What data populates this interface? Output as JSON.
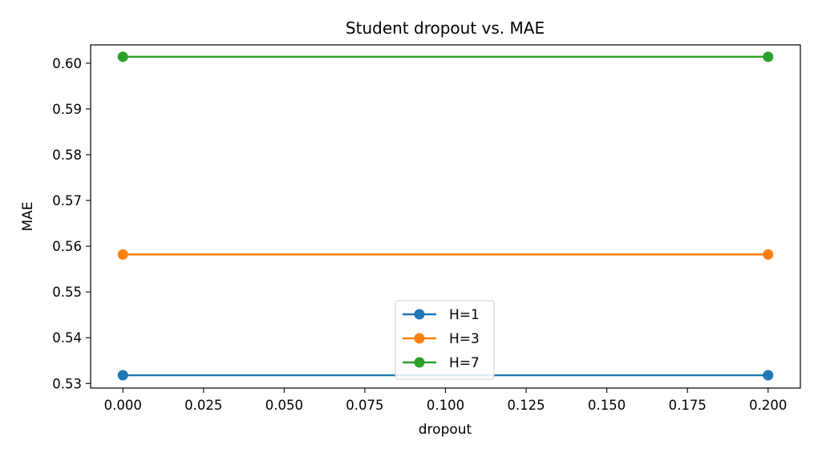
{
  "chart_data": {
    "type": "line",
    "title": "Student dropout vs. MAE",
    "xlabel": "dropout",
    "ylabel": "MAE",
    "x": [
      0.0,
      0.2
    ],
    "xlim": [
      -0.01,
      0.21
    ],
    "ylim": [
      0.529,
      0.604
    ],
    "xticks": [
      "0.000",
      "0.025",
      "0.050",
      "0.075",
      "0.100",
      "0.125",
      "0.150",
      "0.175",
      "0.200"
    ],
    "xtick_values": [
      0.0,
      0.025,
      0.05,
      0.075,
      0.1,
      0.125,
      0.15,
      0.175,
      0.2
    ],
    "yticks": [
      "0.53",
      "0.54",
      "0.55",
      "0.56",
      "0.57",
      "0.58",
      "0.59",
      "0.60"
    ],
    "ytick_values": [
      0.53,
      0.54,
      0.55,
      0.56,
      0.57,
      0.58,
      0.59,
      0.6
    ],
    "grid": false,
    "legend_position": "bottom-center",
    "series": [
      {
        "name": "H=1",
        "color": "#1f77b4",
        "values": [
          0.5318,
          0.5318
        ]
      },
      {
        "name": "H=3",
        "color": "#ff7f0e",
        "values": [
          0.5582,
          0.5582
        ]
      },
      {
        "name": "H=7",
        "color": "#2ca02c",
        "values": [
          0.6014,
          0.6014
        ]
      }
    ]
  }
}
